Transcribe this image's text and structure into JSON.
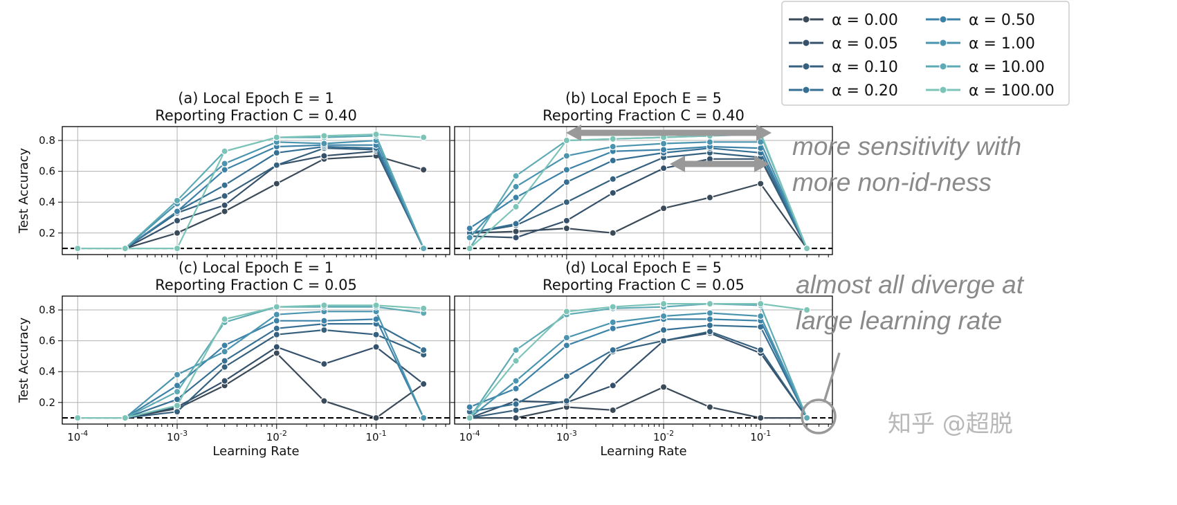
{
  "chart_data": {
    "type": "line",
    "x_scale": "log",
    "xlim": [
      7e-05,
      0.55
    ],
    "ylim": [
      0.06,
      0.89
    ],
    "grid": true,
    "x_ticks": [
      "10^-4",
      "10^-3",
      "10^-2",
      "10^-1"
    ],
    "y_ticks": [
      "0.2",
      "0.4",
      "0.6",
      "0.8"
    ],
    "x": [
      0.0001,
      0.0003,
      0.001,
      0.003,
      0.01,
      0.03,
      0.1,
      0.3
    ],
    "baseline": 0.1,
    "legend": {
      "placement": "top-right",
      "entries": [
        "α = 0.00",
        "α = 0.05",
        "α = 0.10",
        "α = 0.20",
        "α = 0.50",
        "α = 1.00",
        "α = 10.00",
        "α = 100.00"
      ]
    },
    "colors": [
      "#3b4a58",
      "#34506a",
      "#35607e",
      "#356f93",
      "#3c82a8",
      "#4a94b0",
      "#5eaab5",
      "#7cc4b8"
    ],
    "panels": [
      {
        "title1": "(a) Local Epoch E = 1",
        "title2": "Reporting Fraction C = 0.40",
        "xlabel": "",
        "ylabel": "Test Accuracy",
        "series": [
          {
            "name": "α = 0.00",
            "values": [
              null,
              0.1,
              0.2,
              0.34,
              0.52,
              0.68,
              0.7,
              0.61
            ]
          },
          {
            "name": "α = 0.05",
            "values": [
              null,
              0.1,
              0.28,
              0.38,
              0.64,
              0.7,
              0.73,
              0.1
            ]
          },
          {
            "name": "α = 0.10",
            "values": [
              null,
              0.1,
              0.33,
              0.44,
              0.64,
              0.75,
              0.74,
              0.1
            ]
          },
          {
            "name": "α = 0.20",
            "values": [
              null,
              0.1,
              0.34,
              0.51,
              0.72,
              0.76,
              0.75,
              0.1
            ]
          },
          {
            "name": "α = 0.50",
            "values": [
              null,
              0.1,
              0.34,
              0.61,
              0.76,
              0.77,
              0.77,
              0.1
            ]
          },
          {
            "name": "α = 1.00",
            "values": [
              null,
              0.1,
              0.39,
              0.65,
              0.79,
              0.78,
              0.8,
              0.1
            ]
          },
          {
            "name": "α = 10.00",
            "values": [
              null,
              0.1,
              0.41,
              0.73,
              0.82,
              0.82,
              0.83,
              0.1
            ]
          },
          {
            "name": "α = 100.00",
            "values": [
              0.1,
              0.1,
              0.1,
              0.73,
              0.82,
              0.83,
              0.84,
              0.82
            ]
          }
        ]
      },
      {
        "title1": "(b) Local Epoch E = 5",
        "title2": "Reporting Fraction C = 0.40",
        "xlabel": "",
        "ylabel": "",
        "series": [
          {
            "name": "α = 0.00",
            "values": [
              0.2,
              0.21,
              0.23,
              0.2,
              0.36,
              0.43,
              0.52,
              0.1
            ]
          },
          {
            "name": "α = 0.05",
            "values": [
              0.18,
              0.17,
              0.28,
              0.46,
              0.62,
              0.68,
              0.68,
              0.1
            ]
          },
          {
            "name": "α = 0.10",
            "values": [
              0.2,
              0.25,
              0.4,
              0.55,
              0.69,
              0.72,
              0.69,
              0.1
            ]
          },
          {
            "name": "α = 0.20",
            "values": [
              0.2,
              0.26,
              0.53,
              0.67,
              0.72,
              0.75,
              0.72,
              0.1
            ]
          },
          {
            "name": "α = 0.50",
            "values": [
              0.23,
              0.43,
              0.61,
              0.73,
              0.74,
              0.76,
              0.75,
              0.1
            ]
          },
          {
            "name": "α = 1.00",
            "values": [
              0.17,
              0.5,
              0.7,
              0.76,
              0.78,
              0.79,
              0.79,
              0.1
            ]
          },
          {
            "name": "α = 10.00",
            "values": [
              0.1,
              0.57,
              0.8,
              0.81,
              0.82,
              0.83,
              0.84,
              0.1
            ]
          },
          {
            "name": "α = 100.00",
            "values": [
              0.1,
              0.37,
              0.8,
              0.81,
              0.82,
              0.83,
              0.85,
              0.1
            ]
          }
        ]
      },
      {
        "title1": "(c) Local Epoch E = 1",
        "title2": "Reporting Fraction C = 0.05",
        "xlabel": "Learning Rate",
        "ylabel": "Test Accuracy",
        "series": [
          {
            "name": "α = 0.00",
            "values": [
              null,
              0.1,
              0.16,
              0.31,
              0.52,
              0.21,
              0.1,
              0.32
            ]
          },
          {
            "name": "α = 0.05",
            "values": [
              null,
              0.1,
              0.17,
              0.34,
              0.56,
              0.45,
              0.56,
              0.32
            ]
          },
          {
            "name": "α = 0.10",
            "values": [
              null,
              0.1,
              0.14,
              0.43,
              0.64,
              0.67,
              0.64,
              0.51
            ]
          },
          {
            "name": "α = 0.20",
            "values": [
              null,
              0.1,
              0.22,
              0.47,
              0.68,
              0.71,
              0.71,
              0.54
            ]
          },
          {
            "name": "α = 0.50",
            "values": [
              null,
              0.1,
              0.31,
              0.57,
              0.73,
              0.73,
              0.74,
              0.1
            ]
          },
          {
            "name": "α = 1.00",
            "values": [
              null,
              0.1,
              0.38,
              0.53,
              0.77,
              0.79,
              0.79,
              0.1
            ]
          },
          {
            "name": "α = 10.00",
            "values": [
              null,
              0.1,
              0.27,
              0.72,
              0.82,
              0.82,
              0.82,
              0.78
            ]
          },
          {
            "name": "α = 100.00",
            "values": [
              0.1,
              0.1,
              0.18,
              0.74,
              0.82,
              0.83,
              0.83,
              0.81
            ]
          }
        ]
      },
      {
        "title1": "(d) Local Epoch E = 5",
        "title2": "Reporting Fraction C = 0.05",
        "xlabel": "Learning Rate",
        "ylabel": "",
        "series": [
          {
            "name": "α = 0.00",
            "values": [
              0.1,
              0.1,
              0.17,
              0.15,
              0.3,
              0.17,
              0.1,
              0.1
            ]
          },
          {
            "name": "α = 0.05",
            "values": [
              0.1,
              0.21,
              0.2,
              0.31,
              0.6,
              0.65,
              0.52,
              0.1
            ]
          },
          {
            "name": "α = 0.10",
            "values": [
              0.1,
              0.15,
              0.21,
              0.53,
              0.6,
              0.66,
              0.54,
              0.1
            ]
          },
          {
            "name": "α = 0.20",
            "values": [
              0.14,
              0.19,
              0.37,
              0.54,
              0.67,
              0.7,
              0.69,
              0.1
            ]
          },
          {
            "name": "α = 0.50",
            "values": [
              0.17,
              0.29,
              0.57,
              0.68,
              0.74,
              0.74,
              0.73,
              0.1
            ]
          },
          {
            "name": "α = 1.00",
            "values": [
              0.1,
              0.34,
              0.62,
              0.72,
              0.76,
              0.78,
              0.76,
              0.1
            ]
          },
          {
            "name": "α = 10.00",
            "values": [
              0.1,
              0.54,
              0.77,
              0.81,
              0.82,
              0.84,
              0.83,
              0.1
            ]
          },
          {
            "name": "α = 100.00",
            "values": [
              0.1,
              0.47,
              0.79,
              0.82,
              0.84,
              0.84,
              0.84,
              0.8
            ]
          }
        ]
      }
    ],
    "annotations": [
      {
        "line1": "more sensitivity with",
        "line2": "more non-id-ness"
      },
      {
        "line1": "almost all diverge at",
        "line2": "large learning rate"
      }
    ]
  },
  "watermark": "知乎 @超脱"
}
